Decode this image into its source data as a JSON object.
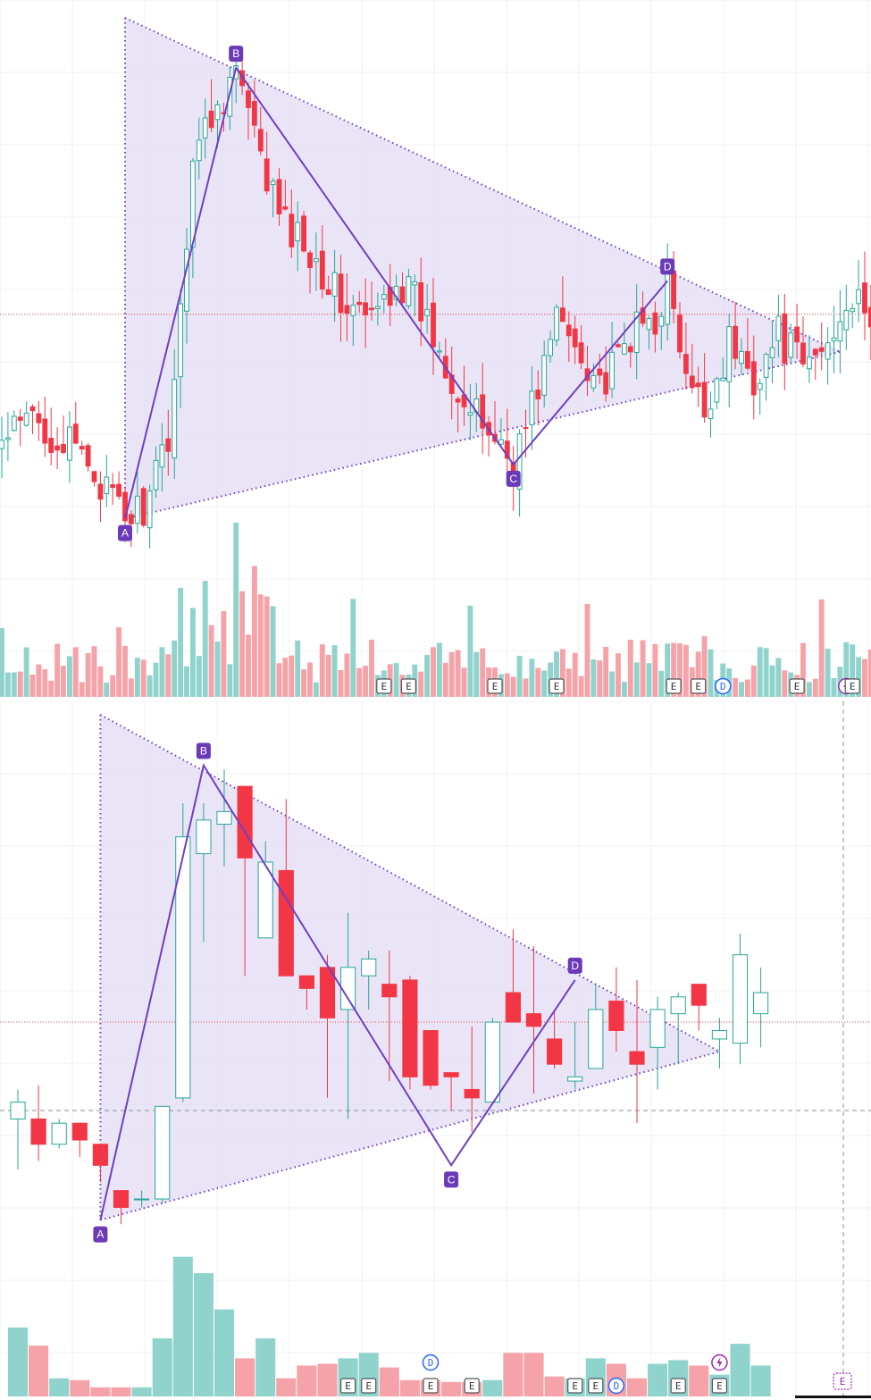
{
  "colors": {
    "up": "#26a69a",
    "down": "#f23645",
    "vol_up": "#8fd3cc",
    "vol_down": "#f5a3a8",
    "pattern_stroke": "#6f3fc2",
    "pattern_fill": "#e3dcf3",
    "label_bg": "#6a3ab8",
    "grid": "#f0f0f3",
    "price_line": "#f23645",
    "dividend": "#2962ff",
    "split": "#9c27b0"
  },
  "pattern_labels": [
    "A",
    "B",
    "C",
    "D"
  ],
  "event_icons": {
    "earnings": "E",
    "dividend": "D",
    "split": "lightning-icon"
  },
  "chart_data": [
    {
      "type": "candlestick",
      "pattern": "triangle",
      "points": {
        "A": {
          "bar": 20,
          "price": 80
        },
        "B": {
          "bar": 38,
          "price": 188
        },
        "C": {
          "bar": 83,
          "price": 93
        },
        "D": {
          "bar": 108,
          "price": 137
        },
        "apex": {
          "bar": 136,
          "price": 120
        }
      },
      "price_range": [
        78,
        200
      ],
      "volume_max": 100,
      "last_price": 129,
      "events": [
        {
          "bar": 62,
          "type": "E"
        },
        {
          "bar": 66,
          "type": "E"
        },
        {
          "bar": 80,
          "type": "E"
        },
        {
          "bar": 90,
          "type": "E"
        },
        {
          "bar": 109,
          "type": "E"
        },
        {
          "bar": 113,
          "type": "E"
        },
        {
          "bar": 117,
          "type": "D"
        },
        {
          "bar": 129,
          "type": "E"
        },
        {
          "bar": 137,
          "type": "S"
        },
        {
          "bar": 138,
          "type": "E"
        }
      ]
    },
    {
      "type": "candlestick",
      "pattern": "triangle",
      "points": {
        "A": {
          "bar": 4,
          "price": 80
        },
        "B": {
          "bar": 9,
          "price": 188
        },
        "C": {
          "bar": 21,
          "price": 93
        },
        "D": {
          "bar": 27,
          "price": 137
        },
        "apex": {
          "bar": 34,
          "price": 120
        }
      },
      "price_range": [
        78,
        200
      ],
      "volume_max": 100,
      "last_price": 127,
      "crosshair_price": 106,
      "bars": [
        {
          "o": 104,
          "h": 111,
          "l": 92,
          "c": 108
        },
        {
          "o": 104,
          "h": 112,
          "l": 94,
          "c": 98
        },
        {
          "o": 98,
          "h": 104,
          "l": 97,
          "c": 103
        },
        {
          "o": 103,
          "h": 103,
          "l": 95,
          "c": 99
        },
        {
          "o": 98,
          "h": 98,
          "l": 89,
          "c": 93
        },
        {
          "o": 87,
          "h": 83,
          "l": 79,
          "c": 83
        },
        {
          "o": 85,
          "h": 87,
          "l": 83,
          "c": 85
        },
        {
          "o": 85,
          "h": 106,
          "l": 84,
          "c": 107
        },
        {
          "o": 109,
          "h": 179,
          "l": 108,
          "c": 171
        },
        {
          "o": 167,
          "h": 179,
          "l": 146,
          "c": 175
        },
        {
          "o": 174,
          "h": 187,
          "l": 164,
          "c": 177
        },
        {
          "o": 183,
          "h": 166,
          "l": 138,
          "c": 166
        },
        {
          "o": 147,
          "h": 170,
          "l": 150,
          "c": 165
        },
        {
          "o": 163,
          "h": 180,
          "l": 138,
          "c": 138
        },
        {
          "o": 138,
          "h": 136,
          "l": 130,
          "c": 135
        },
        {
          "o": 140,
          "h": 143,
          "l": 109,
          "c": 128
        },
        {
          "o": 130,
          "h": 153,
          "l": 104,
          "c": 140
        },
        {
          "o": 138,
          "h": 144,
          "l": 130,
          "c": 142
        },
        {
          "o": 136,
          "h": 144,
          "l": 113,
          "c": 133
        },
        {
          "o": 137,
          "h": 138,
          "l": 111,
          "c": 114
        },
        {
          "o": 125,
          "h": 124,
          "l": 111,
          "c": 112
        },
        {
          "o": 115,
          "h": 114,
          "l": 106,
          "c": 114
        },
        {
          "o": 111,
          "h": 126,
          "l": 101,
          "c": 109
        },
        {
          "o": 108,
          "h": 128,
          "l": 110,
          "c": 127
        },
        {
          "o": 134,
          "h": 149,
          "l": 131,
          "c": 127
        },
        {
          "o": 129,
          "h": 145,
          "l": 110,
          "c": 126
        },
        {
          "o": 123,
          "h": 130,
          "l": 116,
          "c": 117
        },
        {
          "o": 113,
          "h": 127,
          "l": 111,
          "c": 114
        },
        {
          "o": 116,
          "h": 136,
          "l": 117,
          "c": 130
        },
        {
          "o": 132,
          "h": 140,
          "l": 120,
          "c": 125
        },
        {
          "o": 120,
          "h": 137,
          "l": 103,
          "c": 117
        },
        {
          "o": 121,
          "h": 133,
          "l": 111,
          "c": 130
        },
        {
          "o": 129,
          "h": 134,
          "l": 117,
          "c": 133
        },
        {
          "o": 136,
          "h": 133,
          "l": 125,
          "c": 131
        },
        {
          "o": 123,
          "h": 128,
          "l": 116,
          "c": 125
        },
        {
          "o": 122,
          "h": 148,
          "l": 117,
          "c": 143
        },
        {
          "o": 129,
          "h": 140,
          "l": 121,
          "c": 134
        }
      ],
      "volumes": [
        38,
        28,
        10,
        9,
        5,
        5,
        5,
        32,
        77,
        68,
        48,
        21,
        32,
        10,
        17,
        18,
        21,
        24,
        16,
        9,
        9,
        8,
        8,
        9,
        24,
        24,
        11,
        10,
        21,
        18,
        10,
        18,
        20,
        17,
        12,
        29,
        17
      ],
      "events": [
        {
          "bar": 16,
          "type": "E"
        },
        {
          "bar": 17,
          "type": "E"
        },
        {
          "bar": 20,
          "type": "E"
        },
        {
          "bar": 20,
          "type": "D",
          "row": 2
        },
        {
          "bar": 22,
          "type": "E"
        },
        {
          "bar": 27,
          "type": "E"
        },
        {
          "bar": 28,
          "type": "E"
        },
        {
          "bar": 29,
          "type": "D"
        },
        {
          "bar": 32,
          "type": "E"
        },
        {
          "bar": 34,
          "type": "E"
        },
        {
          "bar": 34,
          "type": "S",
          "row": 2
        }
      ]
    }
  ]
}
